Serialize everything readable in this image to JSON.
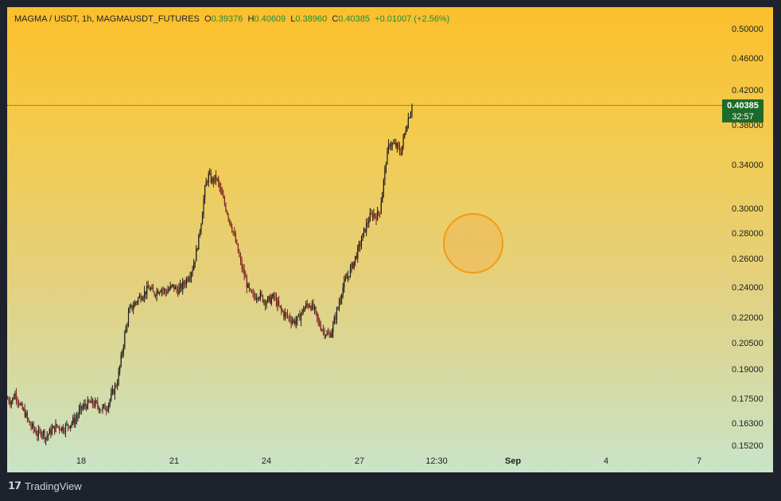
{
  "legend": {
    "symbol": "MAGMA / USDT, 1h, MAGMAUSDT_FUTURES",
    "o_label": "O",
    "o_value": "0.39376",
    "h_label": "H",
    "h_value": "0.40609",
    "l_label": "L",
    "l_value": "0.38960",
    "c_label": "C",
    "c_value": "0.40385",
    "change": "+0.01007 (+2.56%)"
  },
  "price_tag": {
    "price": "0.40385",
    "countdown": "32:57",
    "color": "#1d6b2a"
  },
  "footer": {
    "brand": "TradingView",
    "logo": "tradingview-logo-icon"
  },
  "colors": {
    "up": "#1b1b1b",
    "down": "#7a1f1f",
    "circle_fill": "#eebe5c",
    "circle_border": "#f39c12"
  },
  "chart_data": {
    "type": "candlestick",
    "y_scale": "log",
    "ylim": [
      0.152,
      0.52
    ],
    "y_ticks": [
      "0.50000",
      "0.46000",
      "0.42000",
      "0.38000",
      "0.34000",
      "0.30000",
      "0.28000",
      "0.26000",
      "0.24000",
      "0.22000",
      "0.20500",
      "0.19000",
      "0.17500",
      "0.16300",
      "0.15200"
    ],
    "x_ticks": [
      {
        "label": "18",
        "bold": false
      },
      {
        "label": "21",
        "bold": false
      },
      {
        "label": "24",
        "bold": false
      },
      {
        "label": "27",
        "bold": false
      },
      {
        "label": "12:30",
        "bold": false
      },
      {
        "label": "Sep",
        "bold": true
      },
      {
        "label": "4",
        "bold": false
      },
      {
        "label": "7",
        "bold": false
      }
    ],
    "last_price": 0.40385,
    "path_close": [
      [
        0,
        0.175
      ],
      [
        5,
        0.174
      ],
      [
        10,
        0.178
      ],
      [
        16,
        0.171
      ],
      [
        22,
        0.168
      ],
      [
        27,
        0.163
      ],
      [
        32,
        0.161
      ],
      [
        38,
        0.158
      ],
      [
        43,
        0.16
      ],
      [
        48,
        0.157
      ],
      [
        55,
        0.16
      ],
      [
        62,
        0.162
      ],
      [
        70,
        0.161
      ],
      [
        78,
        0.163
      ],
      [
        85,
        0.165
      ],
      [
        92,
        0.17
      ],
      [
        98,
        0.172
      ],
      [
        105,
        0.173
      ],
      [
        112,
        0.172
      ],
      [
        118,
        0.17
      ],
      [
        124,
        0.171
      ],
      [
        128,
        0.174
      ],
      [
        132,
        0.178
      ],
      [
        138,
        0.184
      ],
      [
        143,
        0.197
      ],
      [
        148,
        0.212
      ],
      [
        153,
        0.225
      ],
      [
        158,
        0.228
      ],
      [
        163,
        0.232
      ],
      [
        168,
        0.235
      ],
      [
        173,
        0.237
      ],
      [
        178,
        0.24
      ],
      [
        183,
        0.236
      ],
      [
        188,
        0.238
      ],
      [
        193,
        0.24
      ],
      [
        198,
        0.237
      ],
      [
        203,
        0.239
      ],
      [
        208,
        0.241
      ],
      [
        213,
        0.238
      ],
      [
        218,
        0.24
      ],
      [
        222,
        0.243
      ],
      [
        227,
        0.248
      ],
      [
        232,
        0.253
      ],
      [
        236,
        0.262
      ],
      [
        240,
        0.275
      ],
      [
        244,
        0.293
      ],
      [
        247,
        0.312
      ],
      [
        250,
        0.325
      ],
      [
        253,
        0.33
      ],
      [
        257,
        0.325
      ],
      [
        262,
        0.328
      ],
      [
        266,
        0.32
      ],
      [
        270,
        0.31
      ],
      [
        274,
        0.302
      ],
      [
        278,
        0.293
      ],
      [
        282,
        0.285
      ],
      [
        286,
        0.275
      ],
      [
        290,
        0.265
      ],
      [
        294,
        0.255
      ],
      [
        298,
        0.248
      ],
      [
        302,
        0.24
      ],
      [
        306,
        0.235
      ],
      [
        310,
        0.234
      ],
      [
        315,
        0.236
      ],
      [
        320,
        0.233
      ],
      [
        325,
        0.231
      ],
      [
        330,
        0.232
      ],
      [
        335,
        0.234
      ],
      [
        340,
        0.228
      ],
      [
        345,
        0.224
      ],
      [
        350,
        0.222
      ],
      [
        355,
        0.22
      ],
      [
        360,
        0.218
      ],
      [
        365,
        0.219
      ],
      [
        370,
        0.224
      ],
      [
        375,
        0.228
      ],
      [
        380,
        0.229
      ],
      [
        385,
        0.226
      ],
      [
        390,
        0.218
      ],
      [
        395,
        0.214
      ],
      [
        400,
        0.211
      ],
      [
        404,
        0.209
      ],
      [
        408,
        0.213
      ],
      [
        412,
        0.221
      ],
      [
        416,
        0.228
      ],
      [
        420,
        0.238
      ],
      [
        425,
        0.245
      ],
      [
        430,
        0.251
      ],
      [
        435,
        0.258
      ],
      [
        440,
        0.266
      ],
      [
        445,
        0.275
      ],
      [
        450,
        0.285
      ],
      [
        455,
        0.293
      ],
      [
        460,
        0.296
      ],
      [
        464,
        0.294
      ],
      [
        468,
        0.299
      ],
      [
        472,
        0.32
      ],
      [
        476,
        0.345
      ],
      [
        480,
        0.362
      ],
      [
        485,
        0.36
      ],
      [
        490,
        0.358
      ],
      [
        494,
        0.352
      ],
      [
        498,
        0.367
      ],
      [
        502,
        0.383
      ],
      [
        506,
        0.395
      ],
      [
        509,
        0.40385
      ]
    ]
  }
}
